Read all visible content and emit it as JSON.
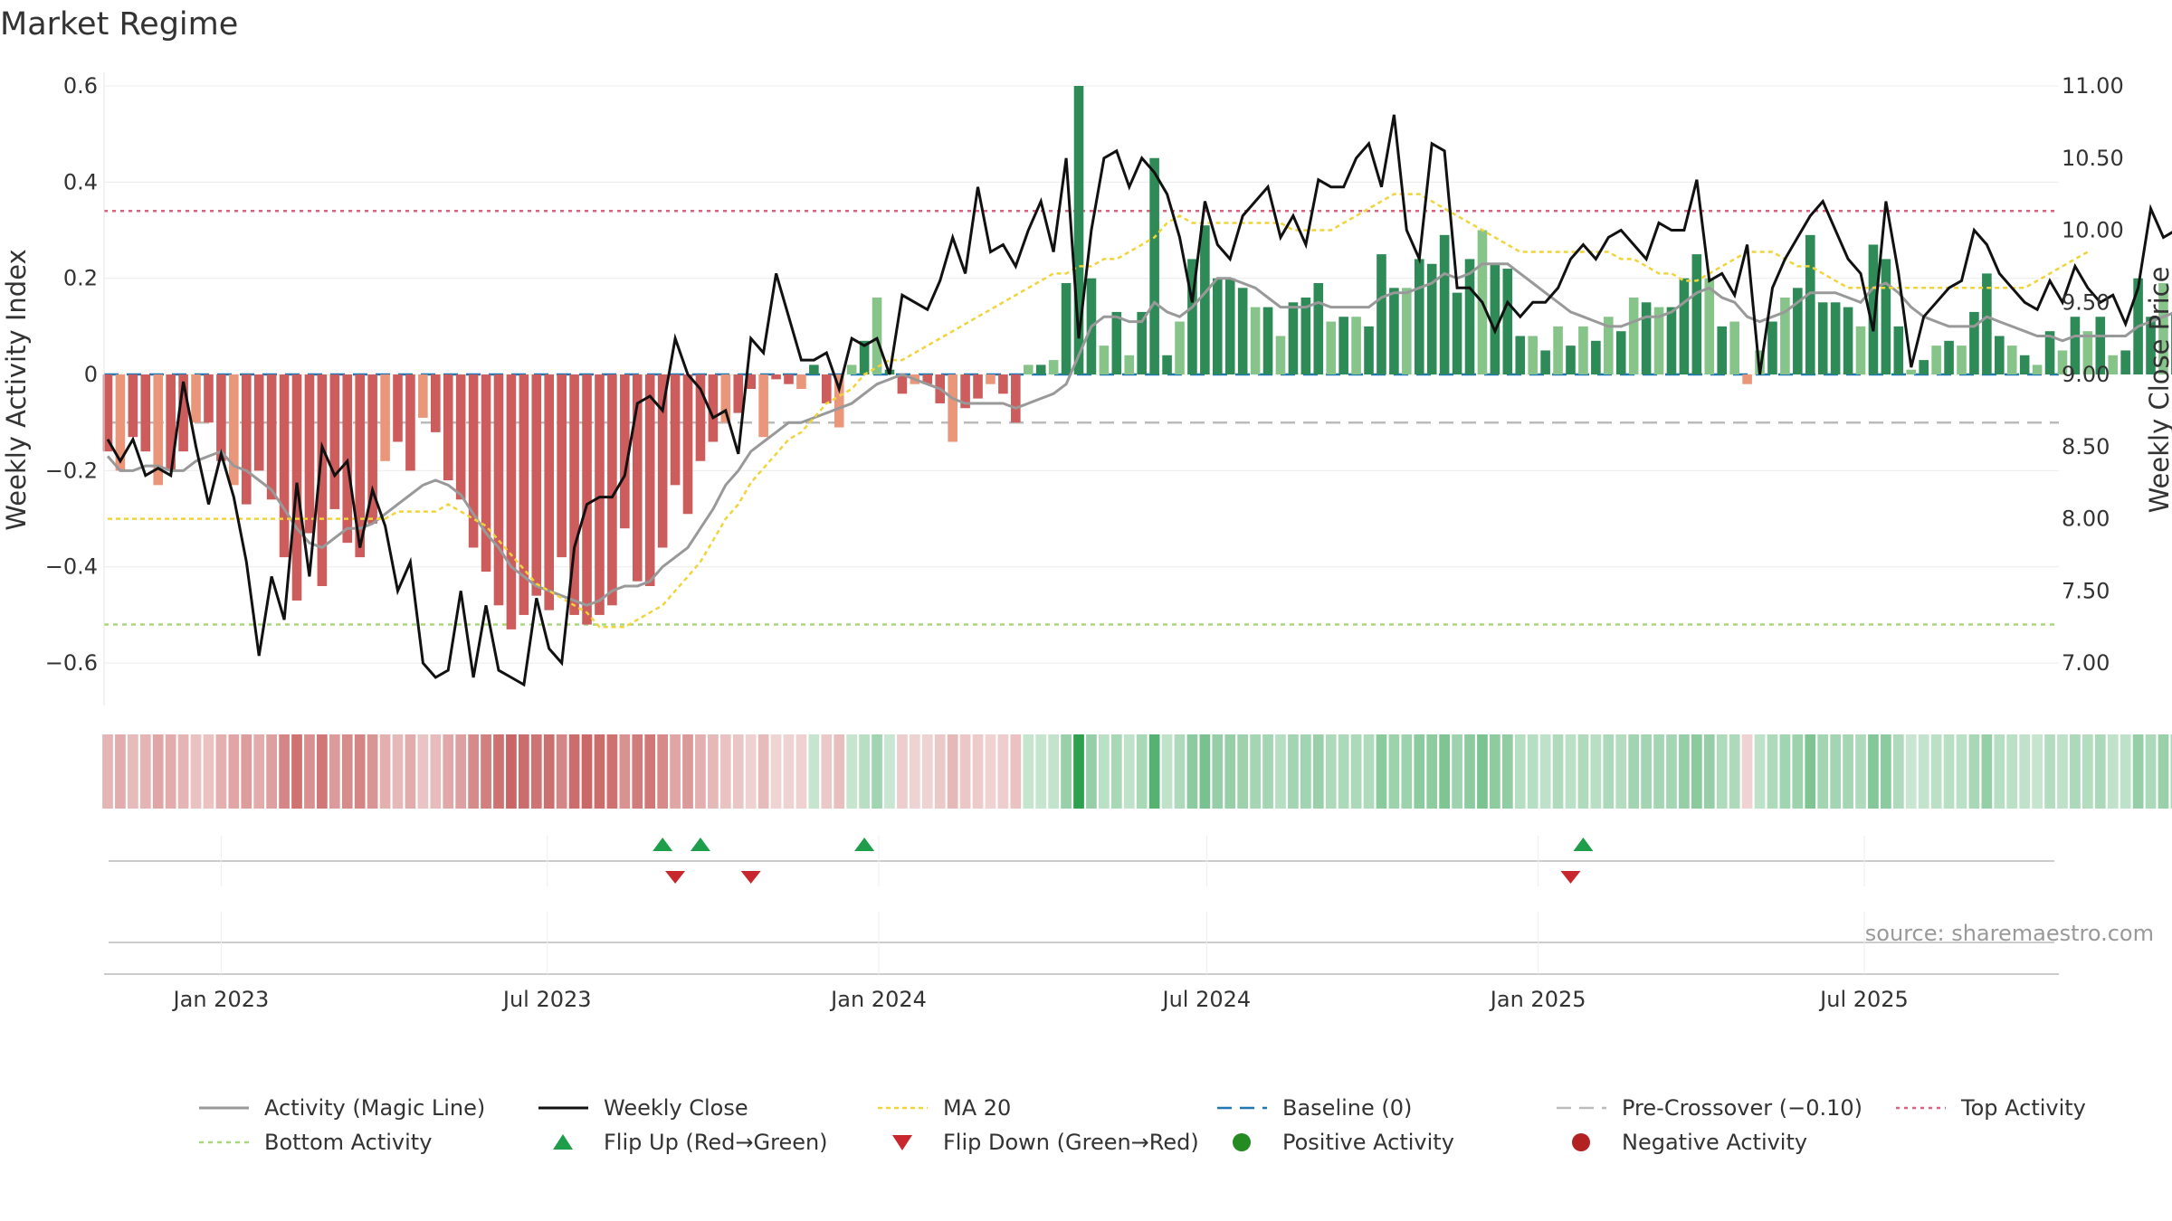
{
  "chart_data": {
    "type": "bar",
    "title": "Market Regime",
    "ylabel_left": "Weekly Activity Index",
    "ylabel_right": "Weekly Close Price",
    "ylim_left": [
      -0.66,
      0.6
    ],
    "ylim_right": [
      6.8,
      11.0
    ],
    "yticks_left": [
      -0.6,
      -0.4,
      -0.2,
      0,
      0.2,
      0.4,
      0.6
    ],
    "yticks_left_labels": [
      "−0.6",
      "−0.4",
      "−0.2",
      "0",
      "0.2",
      "0.4",
      "0.6"
    ],
    "yticks_right": [
      7.0,
      7.5,
      8.0,
      8.5,
      9.0,
      9.5,
      10.0,
      10.5,
      11.0
    ],
    "yticks_right_labels": [
      "7.00",
      "7.50",
      "8.00",
      "8.50",
      "9.00",
      "9.50",
      "10.00",
      "10.50",
      "11.00"
    ],
    "x_date_ticks": [
      {
        "date": "2023-01-01",
        "label": "Jan 2023"
      },
      {
        "date": "2023-07-01",
        "label": "Jul 2023"
      },
      {
        "date": "2024-01-01",
        "label": "Jan 2024"
      },
      {
        "date": "2024-07-01",
        "label": "Jul 2024"
      },
      {
        "date": "2025-01-01",
        "label": "Jan 2025"
      },
      {
        "date": "2025-07-01",
        "label": "Jul 2025"
      }
    ],
    "x_range": [
      "2022-10-28",
      "2025-10-17"
    ],
    "first_week": "2022-10-30",
    "activity": [
      -0.16,
      -0.2,
      -0.13,
      -0.16,
      -0.23,
      -0.2,
      -0.16,
      -0.1,
      -0.1,
      -0.18,
      -0.23,
      -0.27,
      -0.2,
      -0.26,
      -0.38,
      -0.47,
      -0.33,
      -0.44,
      -0.28,
      -0.35,
      -0.38,
      -0.31,
      -0.18,
      -0.14,
      -0.2,
      -0.09,
      -0.12,
      -0.22,
      -0.26,
      -0.36,
      -0.41,
      -0.48,
      -0.53,
      -0.5,
      -0.46,
      -0.49,
      -0.38,
      -0.5,
      -0.52,
      -0.5,
      -0.48,
      -0.32,
      -0.43,
      -0.44,
      -0.36,
      -0.23,
      -0.29,
      -0.18,
      -0.14,
      -0.1,
      -0.08,
      -0.03,
      -0.13,
      -0.01,
      -0.02,
      -0.03,
      0.02,
      -0.06,
      -0.11,
      0.02,
      0.07,
      0.16,
      0.01,
      -0.04,
      -0.02,
      -0.02,
      -0.06,
      -0.14,
      -0.07,
      -0.05,
      -0.02,
      -0.04,
      -0.1,
      0.02,
      0.02,
      0.03,
      0.19,
      0.6,
      0.2,
      0.06,
      0.13,
      0.04,
      0.13,
      0.45,
      0.04,
      0.11,
      0.24,
      0.31,
      0.2,
      0.2,
      0.18,
      0.14,
      0.14,
      0.08,
      0.15,
      0.16,
      0.19,
      0.11,
      0.12,
      0.12,
      0.1,
      0.25,
      0.18,
      0.18,
      0.24,
      0.23,
      0.29,
      0.17,
      0.24,
      0.3,
      0.23,
      0.22,
      0.08,
      0.08,
      0.05,
      0.1,
      0.06,
      0.1,
      0.07,
      0.12,
      0.09,
      0.16,
      0.15,
      0.14,
      0.14,
      0.2,
      0.25,
      0.2,
      0.1,
      0.11,
      -0.02,
      0.05,
      0.11,
      0.16,
      0.18,
      0.29,
      0.15,
      0.15,
      0.14,
      0.1,
      0.27,
      0.24,
      0.1,
      0.01,
      0.03,
      0.06,
      0.07,
      0.06,
      0.13,
      0.21,
      0.08,
      0.06,
      0.04,
      0.02,
      0.09,
      0.05,
      0.12,
      0.09,
      0.12,
      0.04,
      0.05,
      0.2,
      0.12,
      0.19,
      0.13,
      0.15,
      0.26
    ],
    "magic_line": [
      -0.17,
      -0.2,
      -0.2,
      -0.19,
      -0.19,
      -0.2,
      -0.2,
      -0.18,
      -0.17,
      -0.16,
      -0.19,
      -0.2,
      -0.22,
      -0.24,
      -0.28,
      -0.32,
      -0.35,
      -0.36,
      -0.34,
      -0.32,
      -0.32,
      -0.31,
      -0.29,
      -0.27,
      -0.25,
      -0.23,
      -0.22,
      -0.23,
      -0.25,
      -0.29,
      -0.33,
      -0.36,
      -0.4,
      -0.42,
      -0.44,
      -0.45,
      -0.46,
      -0.47,
      -0.48,
      -0.47,
      -0.45,
      -0.44,
      -0.44,
      -0.43,
      -0.4,
      -0.38,
      -0.36,
      -0.32,
      -0.28,
      -0.23,
      -0.2,
      -0.16,
      -0.14,
      -0.12,
      -0.1,
      -0.1,
      -0.09,
      -0.08,
      -0.07,
      -0.06,
      -0.04,
      -0.02,
      -0.01,
      0,
      -0.01,
      -0.02,
      -0.03,
      -0.05,
      -0.06,
      -0.06,
      -0.06,
      -0.06,
      -0.07,
      -0.06,
      -0.05,
      -0.04,
      -0.02,
      0.04,
      0.1,
      0.12,
      0.12,
      0.11,
      0.11,
      0.15,
      0.13,
      0.12,
      0.14,
      0.17,
      0.2,
      0.2,
      0.19,
      0.18,
      0.16,
      0.14,
      0.14,
      0.14,
      0.15,
      0.14,
      0.14,
      0.14,
      0.14,
      0.16,
      0.17,
      0.17,
      0.18,
      0.19,
      0.21,
      0.2,
      0.21,
      0.23,
      0.23,
      0.23,
      0.21,
      0.19,
      0.17,
      0.15,
      0.13,
      0.12,
      0.11,
      0.1,
      0.1,
      0.11,
      0.12,
      0.12,
      0.13,
      0.15,
      0.17,
      0.18,
      0.16,
      0.15,
      0.12,
      0.11,
      0.12,
      0.13,
      0.15,
      0.17,
      0.17,
      0.17,
      0.16,
      0.15,
      0.18,
      0.19,
      0.17,
      0.14,
      0.12,
      0.11,
      0.1,
      0.1,
      0.1,
      0.12,
      0.11,
      0.1,
      0.09,
      0.08,
      0.08,
      0.07,
      0.08,
      0.08,
      0.08,
      0.08,
      0.08,
      0.1,
      0.11,
      0.12,
      0.13,
      0.14,
      0.15
    ],
    "weekly_close": [
      8.55,
      8.4,
      8.55,
      8.3,
      8.35,
      8.3,
      8.95,
      8.5,
      8.1,
      8.45,
      8.15,
      7.7,
      7.05,
      7.6,
      7.3,
      8.25,
      7.6,
      8.5,
      8.3,
      8.4,
      7.8,
      8.2,
      7.95,
      7.5,
      7.7,
      7.0,
      6.9,
      6.95,
      7.5,
      6.9,
      7.4,
      6.95,
      6.9,
      6.85,
      7.45,
      7.1,
      7.0,
      7.8,
      8.1,
      8.15,
      8.15,
      8.3,
      8.8,
      8.85,
      8.75,
      9.25,
      9.0,
      8.9,
      8.7,
      8.75,
      8.45,
      9.25,
      9.15,
      9.7,
      9.4,
      9.1,
      9.1,
      9.15,
      8.9,
      9.25,
      9.2,
      9.25,
      9.0,
      9.55,
      9.5,
      9.45,
      9.65,
      9.95,
      9.7,
      10.3,
      9.85,
      9.9,
      9.75,
      10.0,
      10.2,
      9.85,
      10.5,
      9.25,
      10.0,
      10.5,
      10.55,
      10.3,
      10.5,
      10.4,
      10.25,
      9.95,
      9.5,
      10.2,
      9.9,
      9.8,
      10.1,
      10.2,
      10.3,
      9.95,
      10.1,
      9.9,
      10.35,
      10.3,
      10.3,
      10.5,
      10.6,
      10.3,
      10.8,
      10.0,
      9.8,
      10.6,
      10.55,
      9.6,
      9.6,
      9.5,
      9.3,
      9.5,
      9.4,
      9.5,
      9.5,
      9.6,
      9.8,
      9.9,
      9.8,
      9.95,
      10.0,
      9.9,
      9.8,
      10.05,
      10.0,
      10.0,
      10.35,
      9.65,
      9.7,
      9.55,
      9.9,
      9.0,
      9.6,
      9.8,
      9.95,
      10.1,
      10.2,
      10.0,
      9.8,
      9.7,
      9.3,
      10.2,
      9.7,
      9.05,
      9.4,
      9.5,
      9.6,
      9.65,
      10.0,
      9.9,
      9.7,
      9.6,
      9.5,
      9.45,
      9.65,
      9.5,
      9.75,
      9.6,
      9.5,
      9.55,
      9.35,
      9.6,
      10.15,
      9.95,
      10.0,
      10.05,
      10.0,
      10.45
    ],
    "ma20_close": [
      8.0,
      8.0,
      8.0,
      8.0,
      8.0,
      8.0,
      8.0,
      8.0,
      8.0,
      8.0,
      8.0,
      8.0,
      8.0,
      8.0,
      8.0,
      8.0,
      8.0,
      8.0,
      8.0,
      8.0,
      8.0,
      8.0,
      8.0,
      8.05,
      8.05,
      8.05,
      8.05,
      8.1,
      8.05,
      8.0,
      7.95,
      7.85,
      7.75,
      7.65,
      7.55,
      7.5,
      7.45,
      7.4,
      7.35,
      7.25,
      7.25,
      7.25,
      7.3,
      7.35,
      7.4,
      7.5,
      7.6,
      7.7,
      7.85,
      8.0,
      8.1,
      8.25,
      8.35,
      8.45,
      8.55,
      8.6,
      8.7,
      8.8,
      8.85,
      8.9,
      9.0,
      9.05,
      9.1,
      9.1,
      9.15,
      9.2,
      9.25,
      9.3,
      9.35,
      9.4,
      9.45,
      9.5,
      9.55,
      9.6,
      9.65,
      9.7,
      9.7,
      9.75,
      9.75,
      9.8,
      9.8,
      9.85,
      9.9,
      9.95,
      10.05,
      10.1,
      10.05,
      10.05,
      10.05,
      10.05,
      10.05,
      10.05,
      10.05,
      10.05,
      10.0,
      10.0,
      10.0,
      10.0,
      10.05,
      10.1,
      10.15,
      10.2,
      10.25,
      10.25,
      10.25,
      10.2,
      10.15,
      10.1,
      10.05,
      10.0,
      9.95,
      9.9,
      9.85,
      9.85,
      9.85,
      9.85,
      9.85,
      9.85,
      9.85,
      9.85,
      9.8,
      9.8,
      9.75,
      9.7,
      9.7,
      9.65,
      9.65,
      9.7,
      9.75,
      9.8,
      9.85,
      9.85,
      9.85,
      9.8,
      9.75,
      9.75,
      9.7,
      9.65,
      9.6,
      9.6,
      9.6,
      9.6,
      9.6,
      9.6,
      9.6,
      9.6,
      9.6,
      9.6,
      9.6,
      9.6,
      9.6,
      9.6,
      9.6,
      9.65,
      9.7,
      9.75,
      9.8,
      9.85
    ],
    "top_activity": 0.34,
    "bottom_activity": -0.52,
    "pre_crossover": -0.1,
    "baseline": 0,
    "flip_up_weeks": [
      44,
      47,
      60,
      117
    ],
    "flip_down_weeks": [
      45,
      51,
      116
    ],
    "series_colors": {
      "activity_pos_strong": "#2e8b57",
      "activity_pos_weak": "#86c48a",
      "activity_neg_strong": "#cd5c5c",
      "activity_neg_weak": "#e9967a",
      "magic_line": "#999999",
      "weekly_close": "#111111",
      "ma20": "#f0d43a",
      "baseline": "#1f77b4",
      "pre_crossover": "#bbbbbb",
      "top_activity": "#e0607e",
      "bottom_activity": "#a8d87a",
      "flip_up": "#1e9e4a",
      "flip_down": "#c8282d",
      "positive_activity": "#238b22",
      "negative_activity": "#b22222"
    },
    "legend": [
      {
        "key": "magic",
        "label": "Activity (Magic Line)"
      },
      {
        "key": "close",
        "label": "Weekly Close"
      },
      {
        "key": "ma20",
        "label": "MA 20"
      },
      {
        "key": "baseline",
        "label": "Baseline (0)"
      },
      {
        "key": "precross",
        "label": "Pre-Crossover (−0.10)"
      },
      {
        "key": "top",
        "label": "Top Activity"
      },
      {
        "key": "bottom",
        "label": "Bottom Activity"
      },
      {
        "key": "flipup",
        "label": "Flip Up (Red→Green)"
      },
      {
        "key": "flipdown",
        "label": "Flip Down (Green→Red)"
      },
      {
        "key": "pos",
        "label": "Positive Activity"
      },
      {
        "key": "neg",
        "label": "Negative Activity"
      }
    ],
    "legend_placement": "bottom"
  },
  "source": "source: sharemaestro.com"
}
